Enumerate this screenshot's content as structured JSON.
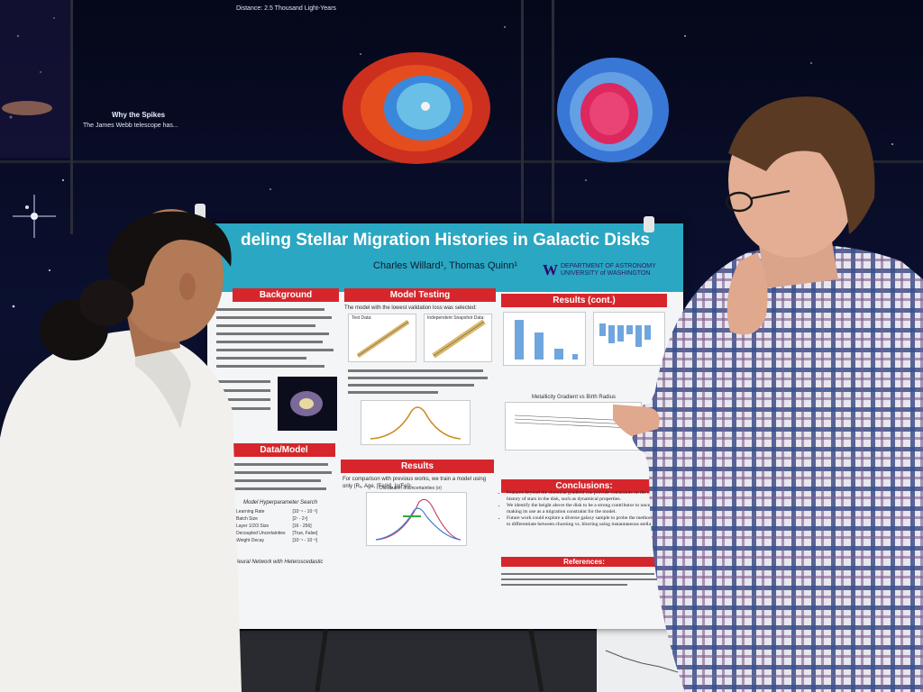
{
  "wall": {
    "distance_caption": "Distance: 2.5 Thousand Light-Years",
    "side_heading": "Why the Spikes",
    "side_text": "The James Webb telescope has..."
  },
  "poster": {
    "title": "deling Stellar Migration Histories in Galactic Disks",
    "authors": "Charles Willard¹, Thomas Quinn¹",
    "affiliation_line1": "DEPARTMENT OF ASTRONOMY",
    "affiliation_line2": "UNIVERSITY of WASHINGTON",
    "logo_letter": "W",
    "sections": {
      "background": "Background",
      "data_model": "Data/Model",
      "model_testing": "Model Testing",
      "results": "Results",
      "results_cont": "Results (cont.)",
      "conclusions": "Conclusions:",
      "references": "References:"
    },
    "model_testing_intro": "The model with the lowest validation loss was selected:",
    "test_data_label": "Test Data:",
    "independent_label": "Independent Snapshot Data:",
    "results_intro": "For comparison with previous works, we train a model using only (Rₓ, Age, [Fe/H], [α/Fe]):",
    "dist_title": "Distribution of Uncertainties (σ)",
    "metallicity_title": "Metallicity Gradient vs Birth Radius",
    "hyper_title": "Model Hyperparameter Search",
    "hyper_rows": [
      [
        "Learning Rate",
        "[10⁻⁴ - 10⁻²]"
      ],
      [
        "Batch Size",
        "[2⁷ - 2⁹]"
      ],
      [
        "Layer 1/2/3 Size",
        "[16 - 256]"
      ],
      [
        "Decoupled Uncertainties",
        "[True, False]"
      ],
      [
        "Weight Decay",
        "[10⁻⁴ - 10⁻²]"
      ]
    ],
    "nn_text": "Neural Network with Heteroscedastic",
    "conclusion_points": [
      "Features beyond the chemical gradient can provide constraints on the migration history of stars in the disk, such as dynamical properties.",
      "We identify the height above the disk to be a strong contributor to uncertainties, making its use as a migration constraint for the model.",
      "Future work could explore a diverse galaxy sample to probe the method's ability to differentiate between churning vs. blurring using instantaneous stellar data."
    ]
  },
  "colors": {
    "header": "#2aa7c2",
    "section_red": "#d6262c",
    "shirt_white": "#f1f0ec",
    "plaid_blue": "#3b4f8a",
    "plaid_purple": "#7a5b8c"
  }
}
